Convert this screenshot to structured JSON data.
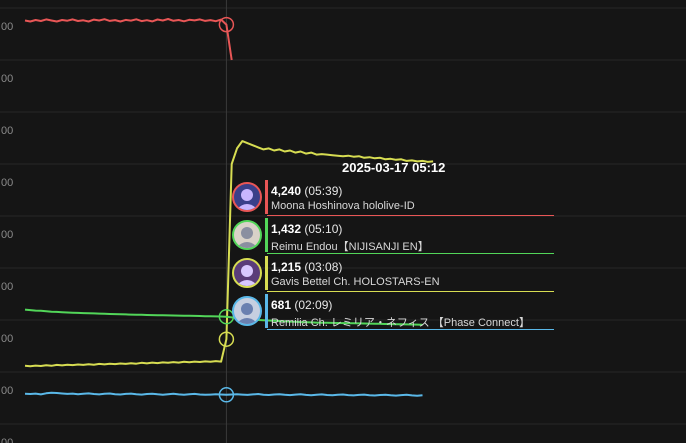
{
  "chart_data": {
    "type": "line",
    "y_tick_labels": [
      "00",
      "00",
      "00",
      "00",
      "00",
      "00",
      "00",
      "00",
      "00"
    ],
    "crosshair_time": "2025-03-17 05:12",
    "grid": true,
    "series": [
      {
        "name": "Moona Hoshinova hololive-ID",
        "color": "#e85656",
        "values": [
          4280,
          4270,
          4285,
          4275,
          4290,
          4280,
          4270,
          4285,
          4278,
          4290,
          4275,
          4282,
          4270,
          4288,
          4280,
          4292,
          4276,
          4284,
          4270,
          4286,
          4279,
          4291,
          4274,
          4283,
          4271,
          4289,
          4280,
          4294,
          4277,
          4285,
          4272,
          4287,
          4281,
          4290,
          4276,
          4284,
          4273,
          4288,
          4240,
          3900
        ]
      },
      {
        "name": "Gavis Bettel Ch. HOLOSTARS-EN",
        "color": "#d7dd52",
        "values": [
          960,
          955,
          962,
          958,
          965,
          960,
          968,
          963,
          970,
          966,
          972,
          968,
          975,
          970,
          978,
          973,
          980,
          976,
          982,
          978,
          985,
          980,
          988,
          983,
          990,
          986,
          992,
          988,
          995,
          990,
          998,
          993,
          1000,
          996,
          1002,
          998,
          1005,
          1000,
          1215,
          2900,
          3050,
          3120,
          3100,
          3080,
          3060,
          3040,
          3050,
          3030,
          3040,
          3020,
          3030,
          3010,
          3020,
          3000,
          3010,
          2990,
          2995,
          2990,
          2985,
          2980,
          2975,
          2980,
          2970,
          2975,
          2960,
          2965,
          2955,
          2960,
          2945,
          2950,
          2940,
          2945,
          2930,
          2935,
          2925,
          2930,
          2920,
          2925
        ]
      },
      {
        "name": "Reimu Endou【NIJISANJI EN】",
        "color": "#52d659",
        "values": [
          1500,
          1495,
          1490,
          1488,
          1485,
          1480,
          1478,
          1475,
          1472,
          1470,
          1468,
          1466,
          1465,
          1463,
          1462,
          1460,
          1458,
          1457,
          1455,
          1454,
          1452,
          1451,
          1450,
          1448,
          1447,
          1446,
          1445,
          1444,
          1443,
          1442,
          1441,
          1440,
          1439,
          1438,
          1437,
          1436,
          1435,
          1434,
          1432,
          1425,
          1420,
          1415,
          1410,
          1405,
          1400,
          1398,
          1395,
          1392,
          1390,
          1388,
          1385,
          1383,
          1380,
          1378,
          1377,
          1375,
          1374,
          1373,
          1372,
          1371,
          1370,
          1369,
          1368,
          1367,
          1366,
          1365,
          1364,
          1363,
          1362,
          1361,
          1360,
          1359,
          1358,
          1357,
          1356,
          1355
        ]
      },
      {
        "name": "Remilia Ch. レミリア・ネフィス 【Phase Connect】",
        "color": "#5ab8e8",
        "values": [
          690,
          688,
          692,
          685,
          695,
          700,
          698,
          693,
          689,
          692,
          687,
          690,
          694,
          688,
          685,
          690,
          693,
          687,
          684,
          689,
          692,
          686,
          683,
          688,
          691,
          686,
          682,
          687,
          690,
          685,
          681,
          686,
          689,
          684,
          681,
          683,
          686,
          684,
          681,
          684,
          687,
          683,
          680,
          685,
          688,
          682,
          679,
          684,
          687,
          681,
          678,
          683,
          686,
          680,
          677,
          682,
          685,
          679,
          676,
          681,
          684,
          678,
          675,
          680,
          683,
          677,
          674,
          679,
          682,
          676,
          673,
          678,
          681,
          675,
          672,
          677
        ]
      }
    ],
    "hover_index": 38
  },
  "tooltip": {
    "time": "2025-03-17 05:12",
    "rows": [
      {
        "count": "4,240",
        "peak_time": "(05:39)",
        "name": "Moona Hoshinova hololive-ID",
        "color": "#e85656",
        "avatar_bg": "#3a3f8a",
        "avatar_fg": "#c9b6ff"
      },
      {
        "count": "1,432",
        "peak_time": "(05:10)",
        "name": "Reimu Endou【NIJISANJI EN】",
        "color": "#52d659",
        "avatar_bg": "#d9d2c8",
        "avatar_fg": "#8a8fa0"
      },
      {
        "count": "1,215",
        "peak_time": "(03:08)",
        "name": "Gavis Bettel Ch. HOLOSTARS-EN",
        "color": "#d7dd52",
        "avatar_bg": "#5a3c7a",
        "avatar_fg": "#d8c8ff"
      },
      {
        "count": "681",
        "peak_time": "(02:09)",
        "name": "Remilia Ch. レミリア・ネフィス 【Phase Connect】",
        "color": "#5ab8e8",
        "avatar_bg": "#c7cfe0",
        "avatar_fg": "#6a80b0"
      }
    ]
  }
}
